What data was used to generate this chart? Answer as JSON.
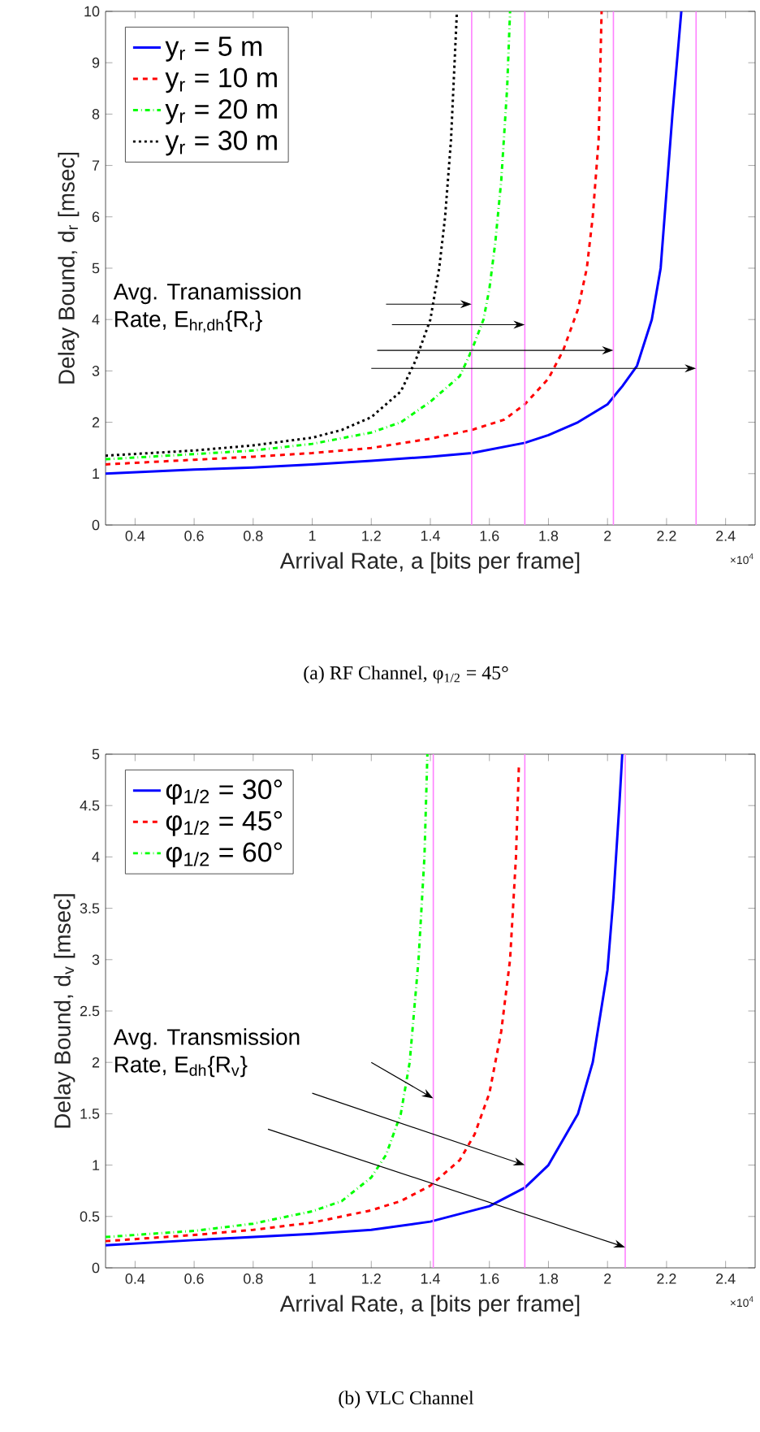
{
  "chart_data": [
    {
      "type": "line",
      "title": "(a) RF Channel, φ$_{1/2}$ = 45°",
      "xlabel": "Arrival Rate, a [bits per frame]",
      "ylabel": "Delay Bound, d$_{r}$ [msec]",
      "xlim": [
        0.3,
        2.5
      ],
      "ylim": [
        0,
        10
      ],
      "xticks": [
        0.4,
        0.6,
        0.8,
        1,
        1.2,
        1.4,
        1.6,
        1.8,
        2,
        2.2,
        2.4
      ],
      "yticks": [
        0,
        1,
        2,
        3,
        4,
        5,
        6,
        7,
        8,
        9,
        10
      ],
      "legend": "top left",
      "grid": false,
      "series": [
        {
          "name": "y$_{r}$ = 5 m",
          "color": "#0000ff",
          "line_style": "solid",
          "x": [
            0.3,
            0.6,
            0.8,
            1.0,
            1.2,
            1.4,
            1.54,
            1.72,
            1.8,
            1.9,
            2.0,
            2.05,
            2.1,
            2.15,
            2.18,
            2.2,
            2.22,
            2.25
          ],
          "values": [
            1.0,
            1.08,
            1.12,
            1.18,
            1.25,
            1.33,
            1.4,
            1.6,
            1.75,
            2.0,
            2.35,
            2.7,
            3.1,
            4.0,
            5,
            6.5,
            8,
            10
          ]
        },
        {
          "name": "y$_{r}$ = 10 m",
          "color": "#ff0000",
          "line_style": "dashed",
          "x": [
            0.3,
            0.6,
            0.8,
            1.0,
            1.2,
            1.4,
            1.54,
            1.65,
            1.72,
            1.8,
            1.85,
            1.9,
            1.93,
            1.95,
            1.97,
            1.98
          ],
          "values": [
            1.18,
            1.27,
            1.33,
            1.4,
            1.5,
            1.68,
            1.85,
            2.05,
            2.35,
            2.85,
            3.4,
            4.2,
            5,
            6,
            7.5,
            10
          ]
        },
        {
          "name": "y$_{r}$ = 20 m",
          "color": "#00ff00",
          "line_style": "dashdot",
          "x": [
            0.3,
            0.6,
            0.8,
            1.0,
            1.2,
            1.3,
            1.4,
            1.5,
            1.54,
            1.58,
            1.6,
            1.62,
            1.64,
            1.66,
            1.67
          ],
          "values": [
            1.28,
            1.38,
            1.45,
            1.58,
            1.8,
            2.0,
            2.4,
            2.9,
            3.4,
            4.0,
            4.6,
            5.5,
            6.7,
            8.5,
            10
          ]
        },
        {
          "name": "y$_{r}$ = 30 m",
          "color": "#000000",
          "line_style": "dotted",
          "x": [
            0.3,
            0.6,
            0.8,
            1.0,
            1.1,
            1.2,
            1.3,
            1.35,
            1.4,
            1.43,
            1.45,
            1.47,
            1.49
          ],
          "values": [
            1.35,
            1.45,
            1.55,
            1.7,
            1.85,
            2.1,
            2.6,
            3.2,
            4.0,
            5.0,
            6.0,
            7.5,
            10
          ]
        }
      ],
      "ref_lines": [
        {
          "axis": "x",
          "value": 1.54,
          "color": "#ff80ff"
        },
        {
          "axis": "x",
          "value": 1.72,
          "color": "#ff80ff"
        },
        {
          "axis": "x",
          "value": 2.02,
          "color": "#ff80ff"
        },
        {
          "axis": "x",
          "value": 2.3,
          "color": "#ff80ff"
        }
      ],
      "annotations": [
        "Avg. Tranamission",
        "Rate, E$_{hr,dh}${R$_{r}$}",
        "×10$^{4}$"
      ]
    },
    {
      "type": "line",
      "title": "(b) VLC Channel",
      "xlabel": "Arrival Rate, a [bits per frame]",
      "ylabel": "Delay Bound, d$_{v}$ [msec]",
      "xlim": [
        0.3,
        2.5
      ],
      "ylim": [
        0,
        5
      ],
      "xticks": [
        0.4,
        0.6,
        0.8,
        1,
        1.2,
        1.4,
        1.6,
        1.8,
        2,
        2.2,
        2.4
      ],
      "yticks": [
        0,
        0.5,
        1,
        1.5,
        2,
        2.5,
        3,
        3.5,
        4,
        4.5,
        5
      ],
      "legend": "top left",
      "grid": false,
      "series": [
        {
          "name": "φ$_{1/2}$ = 30°",
          "color": "#0000ff",
          "line_style": "solid",
          "x": [
            0.3,
            0.6,
            0.8,
            1.0,
            1.2,
            1.4,
            1.6,
            1.72,
            1.8,
            1.9,
            1.95,
            2.0,
            2.02,
            2.04,
            2.05
          ],
          "values": [
            0.22,
            0.27,
            0.3,
            0.33,
            0.37,
            0.45,
            0.6,
            0.78,
            1.0,
            1.5,
            2.0,
            2.9,
            3.6,
            4.5,
            5
          ]
        },
        {
          "name": "φ$_{1/2}$ = 45°",
          "color": "#ff0000",
          "line_style": "dashed",
          "x": [
            0.3,
            0.6,
            0.8,
            1.0,
            1.2,
            1.3,
            1.4,
            1.5,
            1.55,
            1.6,
            1.64,
            1.67,
            1.69,
            1.7
          ],
          "values": [
            0.26,
            0.32,
            0.37,
            0.44,
            0.56,
            0.65,
            0.8,
            1.05,
            1.3,
            1.7,
            2.3,
            3.0,
            4.0,
            4.9
          ]
        },
        {
          "name": "φ$_{1/2}$ = 60°",
          "color": "#00ff00",
          "line_style": "dashdot",
          "x": [
            0.3,
            0.6,
            0.8,
            1.0,
            1.1,
            1.2,
            1.25,
            1.3,
            1.33,
            1.36,
            1.38,
            1.39
          ],
          "values": [
            0.3,
            0.36,
            0.43,
            0.55,
            0.65,
            0.88,
            1.1,
            1.5,
            2.0,
            3.0,
            4.0,
            5
          ]
        }
      ],
      "ref_lines": [
        {
          "axis": "x",
          "value": 1.41,
          "color": "#ff80ff"
        },
        {
          "axis": "x",
          "value": 1.72,
          "color": "#ff80ff"
        },
        {
          "axis": "x",
          "value": 2.06,
          "color": "#ff80ff"
        }
      ],
      "annotations": [
        "Avg. Transmission",
        "Rate, E$_{dh}${R$_{v}$}",
        "×10$^{4}$"
      ]
    }
  ]
}
